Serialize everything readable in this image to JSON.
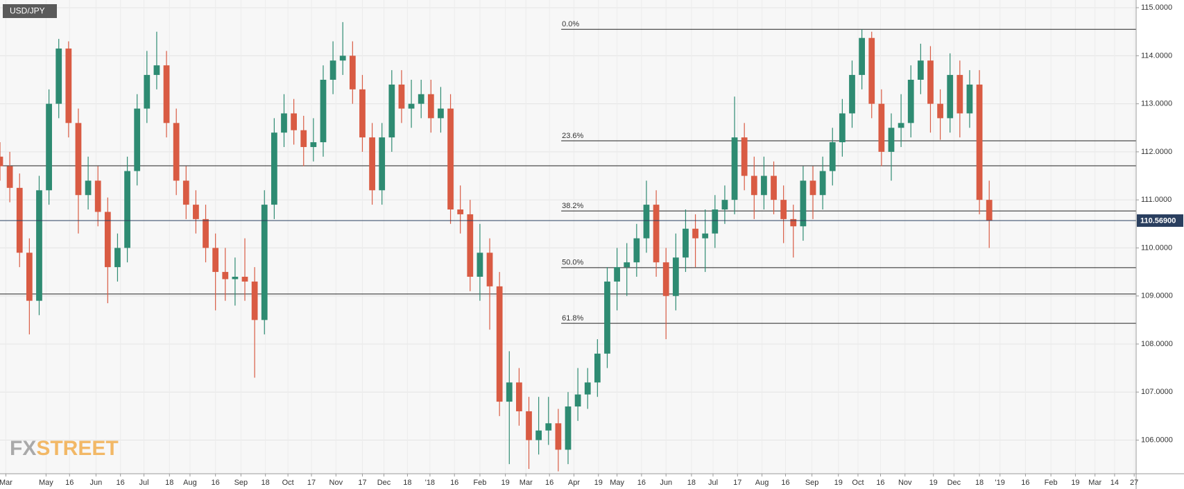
{
  "chart_data": {
    "type": "candlestick",
    "title": "USD/JPY",
    "watermark": [
      "FX",
      "STREET"
    ],
    "up_color": "#2e8b72",
    "down_color": "#d95b43",
    "open": [
      111.9,
      111.7,
      111.25,
      109.9,
      108.9,
      111.2,
      113.0,
      114.15,
      112.6,
      111.1,
      111.4,
      110.75,
      109.6,
      110.0,
      111.6,
      112.9,
      113.6,
      113.8,
      112.6,
      111.4,
      110.9,
      110.6,
      110.0,
      109.5,
      109.35,
      109.4,
      109.3,
      108.5,
      110.9,
      112.4,
      112.8,
      112.45,
      112.1,
      112.2,
      113.5,
      113.9,
      114.0,
      113.3,
      112.3,
      111.2,
      112.3,
      113.4,
      112.9,
      113.0,
      113.2,
      112.7,
      112.9,
      110.8,
      110.7,
      109.4,
      109.9,
      109.2,
      106.8,
      107.2,
      106.6,
      106.0,
      106.2,
      106.35,
      105.8,
      106.7,
      106.95,
      107.2,
      107.8,
      109.3,
      109.6,
      109.7,
      110.2,
      110.9,
      109.7,
      109.0,
      109.8,
      110.4,
      110.2,
      110.3,
      110.8,
      111.0,
      112.3,
      111.5,
      111.1,
      111.5,
      111.0,
      110.6,
      110.45,
      111.4,
      111.1,
      111.6,
      112.2,
      112.8,
      113.6,
      114.37,
      113.0,
      112.0,
      112.5,
      112.6,
      113.5,
      113.9,
      113.0,
      112.7,
      113.6,
      112.8,
      113.4,
      111.0
    ],
    "high": [
      112.2,
      112.0,
      111.55,
      110.2,
      111.5,
      113.3,
      114.35,
      114.3,
      112.9,
      111.9,
      111.7,
      111.05,
      110.3,
      111.9,
      113.2,
      114.1,
      114.5,
      114.1,
      112.9,
      111.7,
      111.2,
      110.9,
      110.3,
      110.0,
      109.8,
      110.2,
      109.6,
      111.2,
      112.7,
      113.2,
      113.1,
      112.75,
      112.7,
      113.8,
      114.3,
      114.7,
      114.3,
      113.6,
      112.6,
      112.6,
      113.7,
      113.7,
      113.5,
      113.5,
      113.5,
      113.35,
      113.2,
      111.3,
      111.0,
      110.5,
      110.2,
      109.5,
      107.85,
      107.5,
      106.9,
      106.9,
      106.9,
      106.65,
      107.0,
      107.5,
      107.5,
      108.1,
      109.6,
      110.0,
      110.1,
      110.5,
      111.4,
      111.2,
      110.0,
      110.3,
      110.8,
      110.7,
      110.8,
      111.1,
      111.3,
      113.15,
      112.6,
      111.9,
      111.9,
      111.8,
      111.3,
      110.9,
      111.7,
      111.7,
      111.9,
      112.5,
      113.1,
      113.9,
      114.55,
      114.5,
      113.3,
      112.8,
      113.2,
      113.8,
      114.25,
      114.2,
      113.3,
      114.05,
      113.9,
      113.7,
      113.7,
      111.4
    ],
    "low": [
      111.4,
      110.95,
      109.6,
      108.2,
      108.6,
      110.9,
      112.7,
      112.3,
      110.3,
      110.8,
      110.45,
      108.85,
      109.3,
      109.7,
      111.3,
      112.6,
      113.3,
      112.3,
      111.1,
      110.6,
      110.3,
      109.7,
      108.7,
      108.9,
      108.8,
      108.9,
      107.3,
      108.2,
      110.6,
      112.1,
      112.15,
      111.7,
      111.8,
      111.9,
      113.2,
      113.6,
      113.0,
      112.0,
      110.9,
      110.9,
      112.0,
      112.6,
      112.5,
      112.7,
      112.4,
      112.4,
      110.5,
      110.3,
      109.1,
      108.9,
      108.3,
      106.5,
      105.5,
      106.3,
      105.4,
      105.7,
      105.9,
      105.35,
      105.5,
      106.4,
      106.65,
      106.9,
      107.5,
      108.7,
      109.0,
      109.4,
      109.9,
      109.4,
      108.1,
      108.7,
      109.5,
      109.6,
      109.5,
      110.0,
      110.5,
      110.7,
      111.2,
      110.6,
      110.8,
      110.7,
      110.1,
      109.8,
      110.15,
      110.6,
      110.8,
      111.3,
      111.9,
      112.5,
      113.3,
      112.7,
      111.7,
      111.4,
      112.1,
      112.3,
      113.2,
      112.4,
      112.25,
      112.4,
      112.3,
      112.5,
      110.7,
      110.0
    ],
    "close": [
      111.7,
      111.25,
      109.9,
      108.9,
      111.2,
      113.0,
      114.15,
      112.6,
      111.1,
      111.4,
      110.75,
      109.6,
      110.0,
      111.6,
      112.9,
      113.6,
      113.8,
      112.6,
      111.4,
      110.9,
      110.6,
      110.0,
      109.5,
      109.35,
      109.4,
      109.3,
      108.5,
      110.9,
      112.4,
      112.8,
      112.45,
      112.1,
      112.2,
      113.5,
      113.9,
      114.0,
      113.3,
      112.3,
      111.2,
      112.3,
      113.4,
      112.9,
      113.0,
      113.2,
      112.7,
      112.9,
      110.8,
      110.7,
      109.4,
      109.9,
      109.2,
      106.8,
      107.2,
      106.6,
      106.0,
      106.2,
      106.35,
      105.8,
      106.7,
      106.95,
      107.2,
      107.8,
      109.3,
      109.6,
      109.7,
      110.2,
      110.9,
      109.7,
      109.0,
      109.8,
      110.4,
      110.2,
      110.3,
      110.8,
      111.0,
      112.3,
      111.5,
      111.1,
      111.5,
      111.0,
      110.6,
      110.45,
      111.4,
      111.1,
      111.6,
      112.2,
      112.8,
      113.6,
      114.37,
      113.0,
      112.0,
      112.5,
      112.6,
      113.5,
      113.9,
      113.0,
      112.7,
      113.6,
      112.8,
      113.4,
      111.0,
      110.569
    ],
    "xlim": [
      0,
      116
    ],
    "xticks": [
      {
        "value": 0.6,
        "label": "Mar"
      },
      {
        "value": 4.7,
        "label": "May"
      },
      {
        "value": 7.1,
        "label": "16"
      },
      {
        "value": 9.8,
        "label": "Jun"
      },
      {
        "value": 12.3,
        "label": "16"
      },
      {
        "value": 14.7,
        "label": "Jul"
      },
      {
        "value": 17.3,
        "label": "18"
      },
      {
        "value": 19.4,
        "label": "Aug"
      },
      {
        "value": 22.0,
        "label": "16"
      },
      {
        "value": 24.6,
        "label": "Sep"
      },
      {
        "value": 27.1,
        "label": "18"
      },
      {
        "value": 29.4,
        "label": "Oct"
      },
      {
        "value": 31.8,
        "label": "17"
      },
      {
        "value": 34.3,
        "label": "Nov"
      },
      {
        "value": 37.0,
        "label": "17"
      },
      {
        "value": 39.2,
        "label": "Dec"
      },
      {
        "value": 41.6,
        "label": "18"
      },
      {
        "value": 43.9,
        "label": "'18"
      },
      {
        "value": 46.4,
        "label": "16"
      },
      {
        "value": 49.0,
        "label": "Feb"
      },
      {
        "value": 51.6,
        "label": "19"
      },
      {
        "value": 53.7,
        "label": "Mar"
      },
      {
        "value": 56.1,
        "label": "16"
      },
      {
        "value": 58.6,
        "label": "Apr"
      },
      {
        "value": 61.1,
        "label": "19"
      },
      {
        "value": 63.0,
        "label": "May"
      },
      {
        "value": 65.5,
        "label": "16"
      },
      {
        "value": 68.0,
        "label": "Jun"
      },
      {
        "value": 70.6,
        "label": "18"
      },
      {
        "value": 72.8,
        "label": "Jul"
      },
      {
        "value": 75.3,
        "label": "17"
      },
      {
        "value": 77.8,
        "label": "Aug"
      },
      {
        "value": 80.2,
        "label": "16"
      },
      {
        "value": 82.9,
        "label": "Sep"
      },
      {
        "value": 85.6,
        "label": "19"
      },
      {
        "value": 87.6,
        "label": "Oct"
      },
      {
        "value": 89.9,
        "label": "16"
      },
      {
        "value": 92.4,
        "label": "Nov"
      },
      {
        "value": 95.3,
        "label": "19"
      },
      {
        "value": 97.4,
        "label": "Dec"
      },
      {
        "value": 100.0,
        "label": "18"
      },
      {
        "value": 102.1,
        "label": "'19"
      },
      {
        "value": 104.7,
        "label": "16"
      },
      {
        "value": 107.3,
        "label": "Feb"
      },
      {
        "value": 109.8,
        "label": "19"
      },
      {
        "value": 111.8,
        "label": "Mar"
      },
      {
        "value": 113.8,
        "label": "14"
      },
      {
        "value": 115.8,
        "label": "27"
      }
    ],
    "ylim": [
      105.3,
      115.16
    ],
    "yticks": [
      {
        "value": 106,
        "label": "106.0000"
      },
      {
        "value": 107,
        "label": "107.0000"
      },
      {
        "value": 108,
        "label": "108.0000"
      },
      {
        "value": 109,
        "label": "109.0000"
      },
      {
        "value": 110,
        "label": "110.0000"
      },
      {
        "value": 111,
        "label": "111.0000"
      },
      {
        "value": 112,
        "label": "112.0000"
      },
      {
        "value": 113,
        "label": "113.0000"
      },
      {
        "value": 114,
        "label": "114.0000"
      },
      {
        "value": 115,
        "label": "115.0000"
      }
    ],
    "grid": true,
    "levels_start": 57.3,
    "levels": [
      {
        "label": "0.0%",
        "value": 114.55
      },
      {
        "label": "23.6%",
        "value": 112.23
      },
      {
        "label": "38.2%",
        "value": 110.77
      },
      {
        "label": "50.0%",
        "value": 109.59
      },
      {
        "label": "61.8%",
        "value": 108.43
      }
    ],
    "lines": [
      111.71,
      109.04
    ],
    "last_price": {
      "value": 110.569,
      "label": "110.56900"
    }
  }
}
